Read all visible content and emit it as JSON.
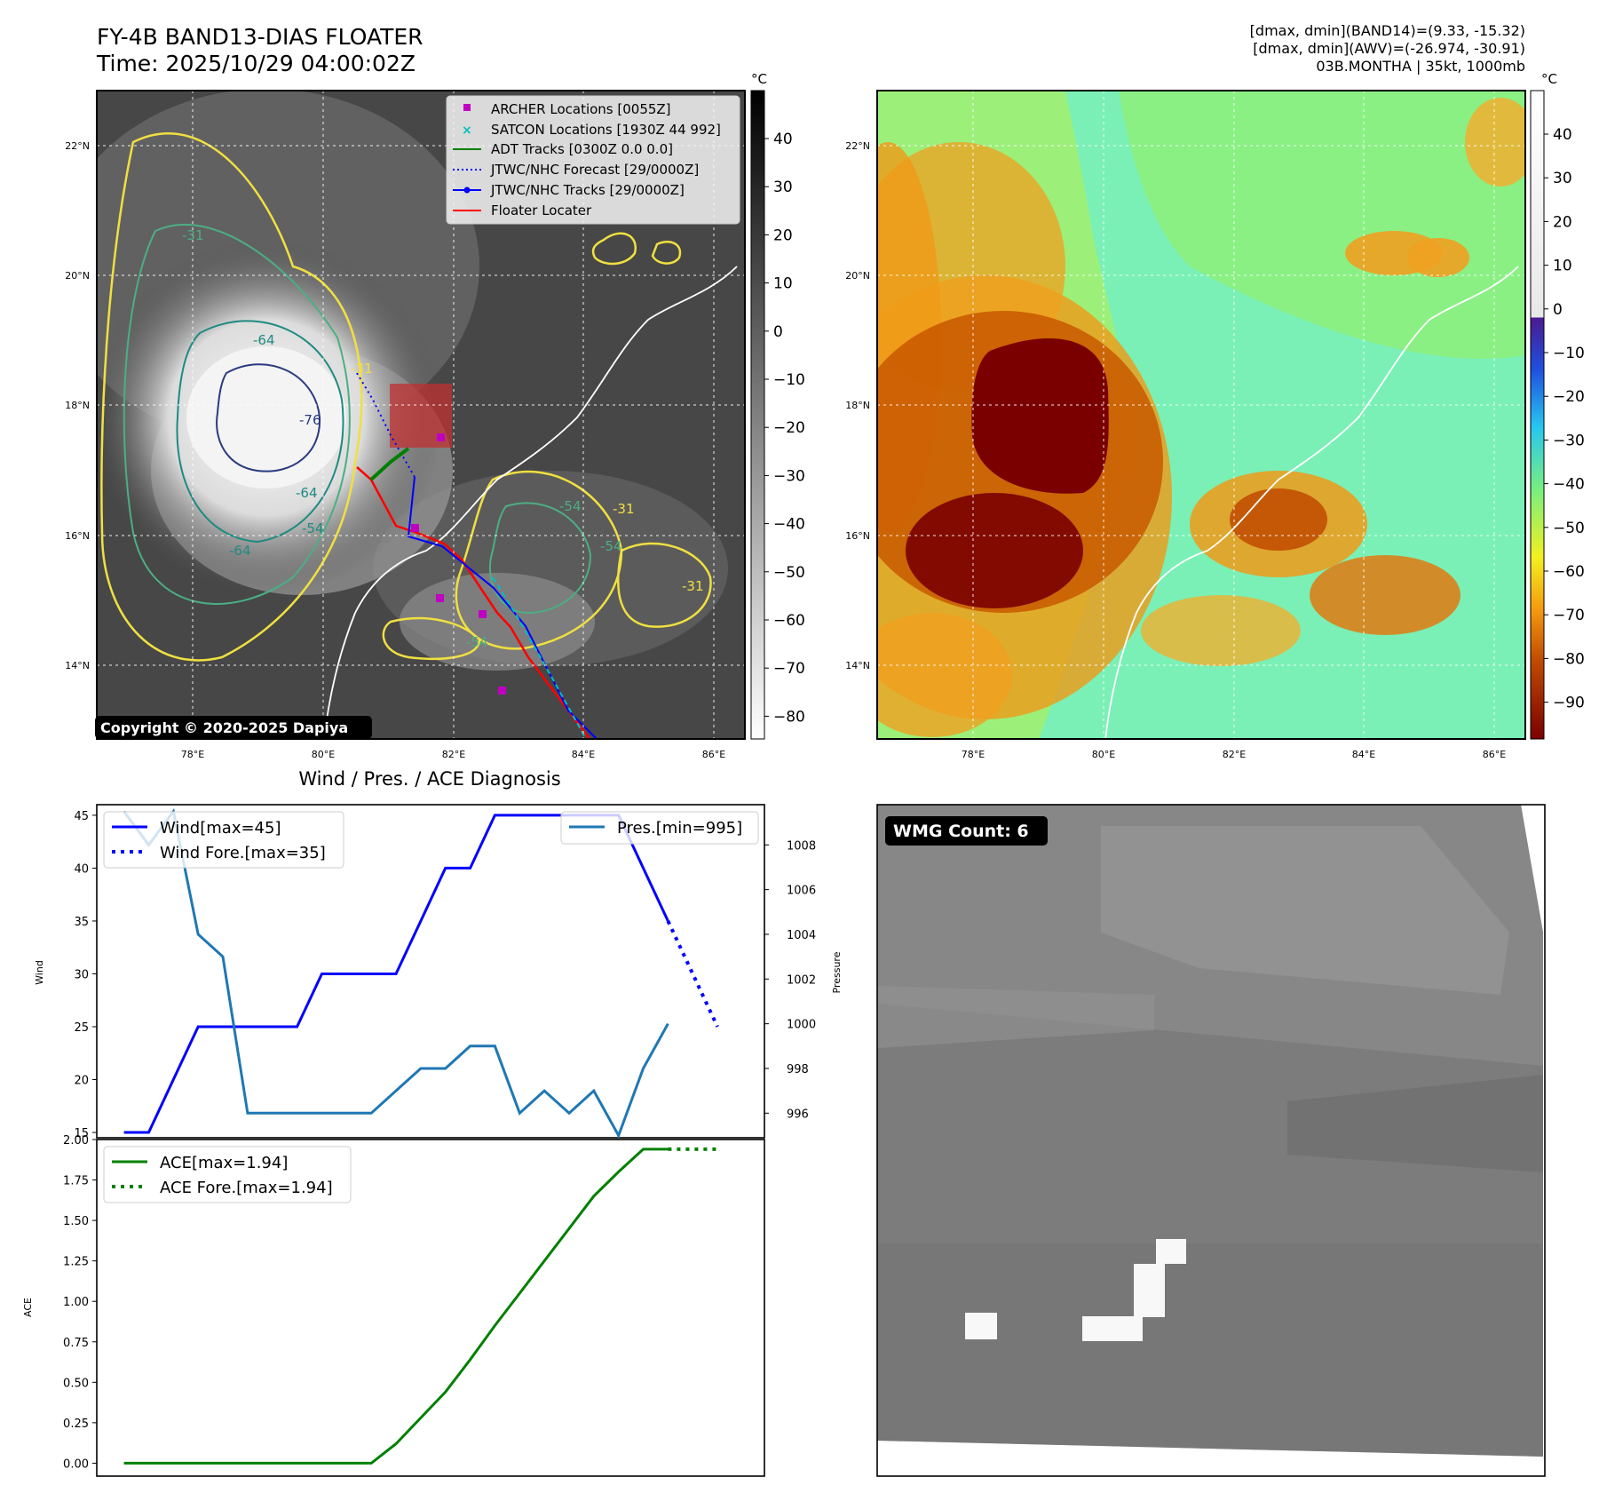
{
  "header": {
    "title_line1": "FY-4B BAND13-DIAS FLOATER",
    "title_line2": "Time: 2025/10/29 04:00:02Z",
    "info_line1": "[dmax, dmin](BAND14)=(9.33, -15.32)",
    "info_line2": "[dmax, dmin](AWV)=(-26.974, -30.91)",
    "info_line3": "03B.MONTHA | 35kt, 1000mb"
  },
  "maps": {
    "lat_labels": [
      "22°N",
      "20°N",
      "18°N",
      "16°N",
      "14°N"
    ],
    "lon_labels": [
      "78°E",
      "80°E",
      "82°E",
      "84°E",
      "86°E"
    ],
    "copyright": "Copyright © 2020-2025 Dapiya",
    "contour_labels": [
      "-31",
      "-64",
      "-76",
      "-64",
      "-54",
      "-64",
      "-54",
      "-54",
      "-31",
      "-54",
      "-31",
      "-31"
    ],
    "legend": [
      {
        "label": "ARCHER Locations [0055Z]",
        "color": "#c000c0",
        "style": "square"
      },
      {
        "label": "SATCON Locations [1930Z 44 992]",
        "color": "#00bfbf",
        "style": "x"
      },
      {
        "label": "ADT Tracks [0300Z 0.0 0.0]",
        "color": "#008000",
        "style": "line"
      },
      {
        "label": "JTWC/NHC Forecast [29/0000Z]",
        "color": "#0000ff",
        "style": "dotted"
      },
      {
        "label": "JTWC/NHC Tracks [29/0000Z]",
        "color": "#0000ff",
        "style": "line-dot"
      },
      {
        "label": "Floater Locater",
        "color": "#ff0000",
        "style": "line"
      }
    ],
    "colorbar_left": {
      "unit": "°C",
      "ticks": [
        "40",
        "30",
        "20",
        "10",
        "0",
        "−10",
        "−20",
        "−30",
        "−40",
        "−50",
        "−60",
        "−70",
        "−80"
      ]
    },
    "colorbar_right": {
      "unit": "°C",
      "ticks": [
        "40",
        "30",
        "20",
        "10",
        "0",
        "−10",
        "−20",
        "−30",
        "−40",
        "−50",
        "−60",
        "−70",
        "−80",
        "−90"
      ]
    }
  },
  "diagnosis_title": "Wind / Pres. / ACE Diagnosis",
  "wmg": {
    "label": "WMG Count: 6"
  },
  "chart_data": [
    {
      "type": "line",
      "title": "Wind / Pres. / ACE Diagnosis",
      "ylabel": "Wind",
      "ylabel_right": "Pressure",
      "ylim": [
        14.5,
        46
      ],
      "ylim_right": [
        994.9,
        1009.8
      ],
      "yticks": [
        15,
        20,
        25,
        30,
        35,
        40,
        45
      ],
      "yticks_right": [
        996,
        998,
        1000,
        1002,
        1004,
        1006,
        1008
      ],
      "legend_left": [
        "Wind[max=45]",
        "Wind Fore.[max=35]"
      ],
      "legend_right": [
        "Pres.[min=995]"
      ],
      "x": [
        0,
        1,
        2,
        3,
        4,
        5,
        6,
        7,
        8,
        9,
        10,
        11,
        12,
        13,
        14,
        15,
        16,
        17,
        18,
        19,
        20,
        21,
        22
      ],
      "series": [
        {
          "name": "Wind[max=45]",
          "color": "#0000ff",
          "style": "solid",
          "x": [
            0,
            1,
            2,
            3,
            4,
            5,
            6,
            7,
            8,
            9,
            10,
            11,
            12,
            13,
            14,
            15,
            16,
            17,
            18,
            19,
            20,
            21,
            22
          ],
          "values": [
            15,
            15,
            20,
            25,
            25,
            25,
            25,
            25,
            30,
            30,
            30,
            30,
            35,
            40,
            40,
            45,
            45,
            45,
            45,
            45,
            45,
            40,
            35
          ]
        },
        {
          "name": "Wind Fore.[max=35]",
          "color": "#0000ff",
          "style": "dotted",
          "x": [
            22,
            24
          ],
          "values": [
            35,
            25
          ]
        },
        {
          "name": "Pres.[min=995]",
          "color": "#1f77b4",
          "style": "solid",
          "axis": "right",
          "x": [
            0,
            1,
            2,
            3,
            4,
            5,
            6,
            7,
            8,
            9,
            10,
            11,
            12,
            13,
            14,
            15,
            16,
            17,
            18,
            19,
            20,
            21,
            22
          ],
          "values": [
            1009.5,
            1008,
            1009.5,
            1004,
            1003,
            996,
            996,
            996,
            996,
            996,
            996,
            997,
            998,
            998,
            999,
            999,
            996,
            997,
            996,
            997,
            995,
            998,
            1000
          ]
        }
      ]
    },
    {
      "type": "line",
      "ylabel": "ACE",
      "ylim": [
        -0.08,
        2.0
      ],
      "yticks": [
        0.0,
        0.25,
        0.5,
        0.75,
        1.0,
        1.25,
        1.5,
        1.75,
        2.0
      ],
      "ytick_labels": [
        "0.00",
        "0.25",
        "0.50",
        "0.75",
        "1.00",
        "1.25",
        "1.50",
        "1.75",
        "2.00"
      ],
      "legend": [
        "ACE[max=1.94]",
        "ACE Fore.[max=1.94]"
      ],
      "series": [
        {
          "name": "ACE[max=1.94]",
          "color": "#008000",
          "style": "solid",
          "x": [
            0,
            1,
            2,
            3,
            4,
            5,
            6,
            7,
            8,
            9,
            10,
            11,
            12,
            13,
            14,
            15,
            16,
            17,
            18,
            19,
            20,
            21,
            22
          ],
          "values": [
            0,
            0,
            0,
            0,
            0,
            0,
            0,
            0,
            0,
            0,
            0,
            0.12,
            0.28,
            0.44,
            0.64,
            0.85,
            1.05,
            1.25,
            1.45,
            1.65,
            1.8,
            1.94,
            1.94
          ]
        },
        {
          "name": "ACE Fore.[max=1.94]",
          "color": "#008000",
          "style": "dotted",
          "x": [
            22,
            24
          ],
          "values": [
            1.94,
            1.94
          ]
        }
      ]
    }
  ]
}
